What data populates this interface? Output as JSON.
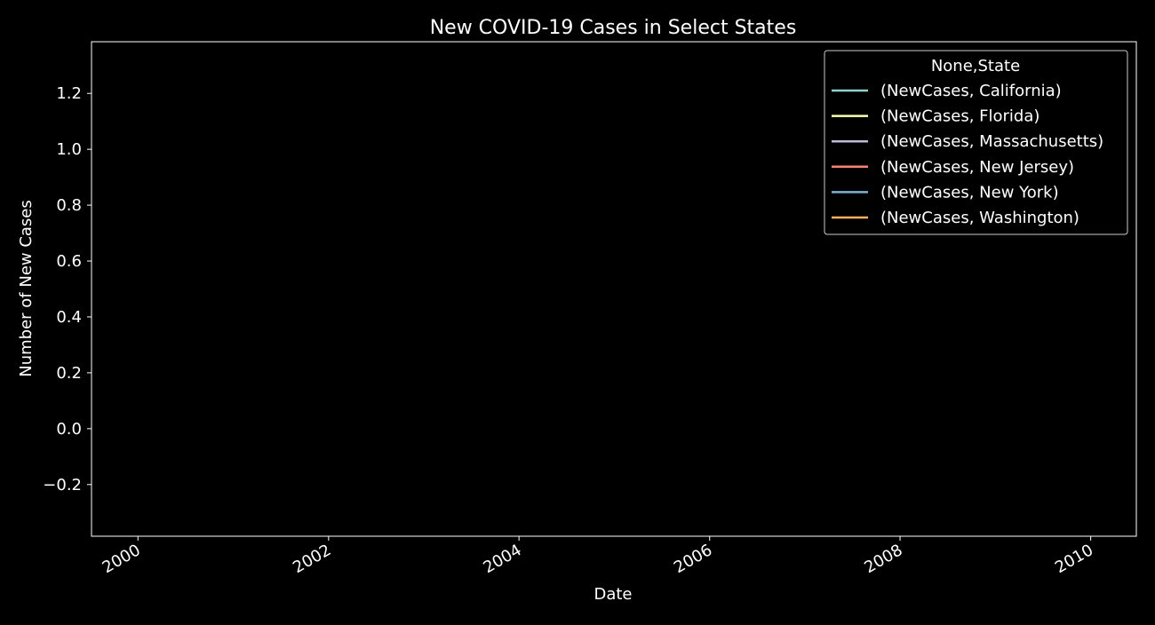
{
  "chart_data": {
    "type": "line",
    "title": "New COVID-19 Cases in Select States",
    "xlabel": "Date",
    "ylabel": "Number of New Cases",
    "x_ticks": [
      "2000",
      "2002",
      "2004",
      "2006",
      "2008",
      "2010"
    ],
    "xlim": [
      "1999-07-07",
      "2010-06-25"
    ],
    "y_ticks": [
      "−0.2",
      "0.0",
      "0.2",
      "0.4",
      "0.6",
      "0.8",
      "1.0",
      "1.2"
    ],
    "ylim": [
      -0.385,
      1.385
    ],
    "grid": false,
    "legend": {
      "title": "None,State",
      "position": "top-right"
    },
    "series": [
      {
        "name": "(NewCases, California)",
        "color": "#8dd3c7",
        "values": []
      },
      {
        "name": "(NewCases, Florida)",
        "color": "#feffb3",
        "values": []
      },
      {
        "name": "(NewCases, Massachusetts)",
        "color": "#bfbbd9",
        "values": []
      },
      {
        "name": "(NewCases, New Jersey)",
        "color": "#fa8174",
        "values": []
      },
      {
        "name": "(NewCases, New York)",
        "color": "#81b1d2",
        "values": []
      },
      {
        "name": "(NewCases, Washington)",
        "color": "#fdb462",
        "values": []
      }
    ],
    "background_color": "#000000",
    "foreground_color": "#ffffff"
  }
}
